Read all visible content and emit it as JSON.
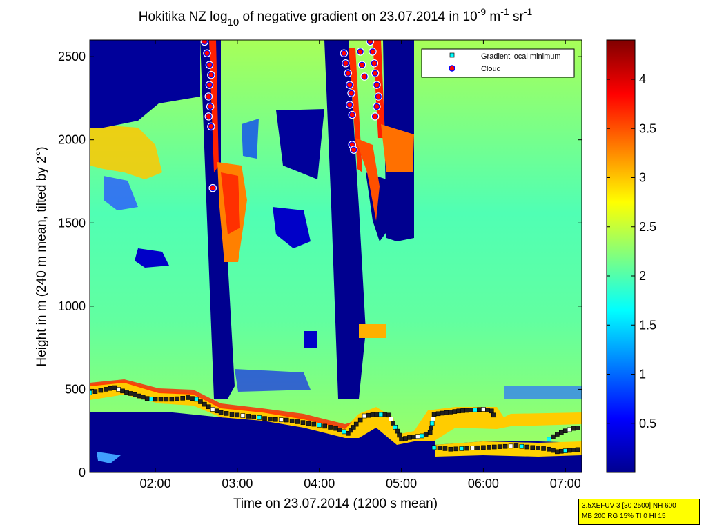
{
  "chart_data": {
    "type": "heatmap",
    "title": {
      "prefix": "Hokitika NZ log",
      "log_base": "10",
      "middle": " of negative gradient on 23.07.2014 in 10",
      "exp1": "-9",
      "unit_mid": " m",
      "exp2": "-1",
      "unit_end": " sr",
      "exp3": "-1"
    },
    "xlabel": "Time on 23.07.2014 (1200 s mean)",
    "ylabel": "Height in m (240 m mean, tilted by 2°)",
    "x_range_hours": [
      1.2,
      7.2
    ],
    "y_range_m": [
      0,
      2600
    ],
    "x_ticks": [
      {
        "label": "02:00",
        "value": 2.0
      },
      {
        "label": "03:00",
        "value": 3.0
      },
      {
        "label": "04:00",
        "value": 4.0
      },
      {
        "label": "05:00",
        "value": 5.0
      },
      {
        "label": "06:00",
        "value": 6.0
      },
      {
        "label": "07:00",
        "value": 7.0
      }
    ],
    "y_ticks": [
      {
        "label": "0",
        "value": 0
      },
      {
        "label": "500",
        "value": 500
      },
      {
        "label": "1000",
        "value": 1000
      },
      {
        "label": "1500",
        "value": 1500
      },
      {
        "label": "2000",
        "value": 2000
      },
      {
        "label": "2500",
        "value": 2500
      }
    ],
    "colorbar": {
      "range": [
        0,
        4.4
      ],
      "colormap": "jet",
      "ticks": [
        {
          "label": "0.5",
          "value": 0.5
        },
        {
          "label": "1",
          "value": 1.0
        },
        {
          "label": "1.5",
          "value": 1.5
        },
        {
          "label": "2",
          "value": 2.0
        },
        {
          "label": "2.5",
          "value": 2.5
        },
        {
          "label": "3",
          "value": 3.0
        },
        {
          "label": "3.5",
          "value": 3.5
        },
        {
          "label": "4",
          "value": 4.0
        }
      ]
    },
    "legend": {
      "placement": "top-right",
      "entries": [
        {
          "label": "Gradient local minimum",
          "marker": "square",
          "color": "#00ffff"
        },
        {
          "label": "Cloud",
          "marker": "circle",
          "color": "#ff0000",
          "edge": "#0000ff"
        }
      ]
    },
    "boundary_layer_minima": [
      [
        1.2,
        480
      ],
      [
        1.4,
        500
      ],
      [
        1.5,
        510
      ],
      [
        1.6,
        490
      ],
      [
        1.8,
        460
      ],
      [
        1.9,
        445
      ],
      [
        2.0,
        440
      ],
      [
        2.2,
        440
      ],
      [
        2.4,
        450
      ],
      [
        2.5,
        440
      ],
      [
        2.6,
        410
      ],
      [
        2.7,
        380
      ],
      [
        2.8,
        360
      ],
      [
        3.0,
        345
      ],
      [
        3.2,
        335
      ],
      [
        3.4,
        320
      ],
      [
        3.6,
        315
      ],
      [
        3.8,
        300
      ],
      [
        4.0,
        285
      ],
      [
        4.2,
        265
      ],
      [
        4.35,
        235
      ],
      [
        4.45,
        290
      ],
      [
        4.55,
        340
      ],
      [
        4.7,
        350
      ],
      [
        4.85,
        345
      ],
      [
        5.0,
        200
      ],
      [
        5.1,
        210
      ],
      [
        5.25,
        220
      ],
      [
        5.35,
        240
      ],
      [
        5.4,
        350
      ],
      [
        5.55,
        360
      ],
      [
        5.7,
        370
      ],
      [
        5.85,
        375
      ],
      [
        6.0,
        380
      ],
      [
        6.1,
        370
      ],
      [
        6.15,
        320
      ]
    ],
    "lower_layer_minima": [
      [
        5.4,
        150
      ],
      [
        5.6,
        140
      ],
      [
        5.8,
        145
      ],
      [
        6.0,
        150
      ],
      [
        6.2,
        155
      ],
      [
        6.4,
        160
      ],
      [
        6.6,
        150
      ],
      [
        6.8,
        140
      ],
      [
        6.9,
        125
      ],
      [
        7.0,
        130
      ],
      [
        7.1,
        135
      ],
      [
        7.2,
        140
      ]
    ],
    "upper_right_minima": [
      [
        6.8,
        200
      ],
      [
        6.9,
        230
      ],
      [
        7.0,
        250
      ],
      [
        7.1,
        265
      ],
      [
        7.2,
        270
      ]
    ],
    "cloud_points": [
      [
        2.6,
        2590
      ],
      [
        2.63,
        2520
      ],
      [
        2.66,
        2450
      ],
      [
        2.68,
        2390
      ],
      [
        2.66,
        2330
      ],
      [
        2.65,
        2260
      ],
      [
        2.67,
        2200
      ],
      [
        2.65,
        2140
      ],
      [
        2.68,
        2080
      ],
      [
        2.7,
        1710
      ],
      [
        4.3,
        2520
      ],
      [
        4.32,
        2460
      ],
      [
        4.35,
        2400
      ],
      [
        4.37,
        2330
      ],
      [
        4.39,
        2280
      ],
      [
        4.37,
        2210
      ],
      [
        4.4,
        2150
      ],
      [
        4.4,
        1970
      ],
      [
        4.42,
        1940
      ],
      [
        4.5,
        2530
      ],
      [
        4.52,
        2450
      ],
      [
        4.55,
        2380
      ],
      [
        4.62,
        2590
      ],
      [
        4.65,
        2530
      ],
      [
        4.67,
        2460
      ],
      [
        4.68,
        2400
      ],
      [
        4.7,
        2330
      ],
      [
        4.72,
        2260
      ],
      [
        4.7,
        2200
      ],
      [
        4.68,
        2140
      ]
    ]
  },
  "info_box": {
    "line1": "3.5XEFUV 3 [30 2500] NH 600",
    "line2": "MB 200 RG 15% TI 0 HI 15"
  },
  "colors": {
    "background_low": "#00008f",
    "layer": "#ffd200",
    "cloud": "#ff0000"
  }
}
